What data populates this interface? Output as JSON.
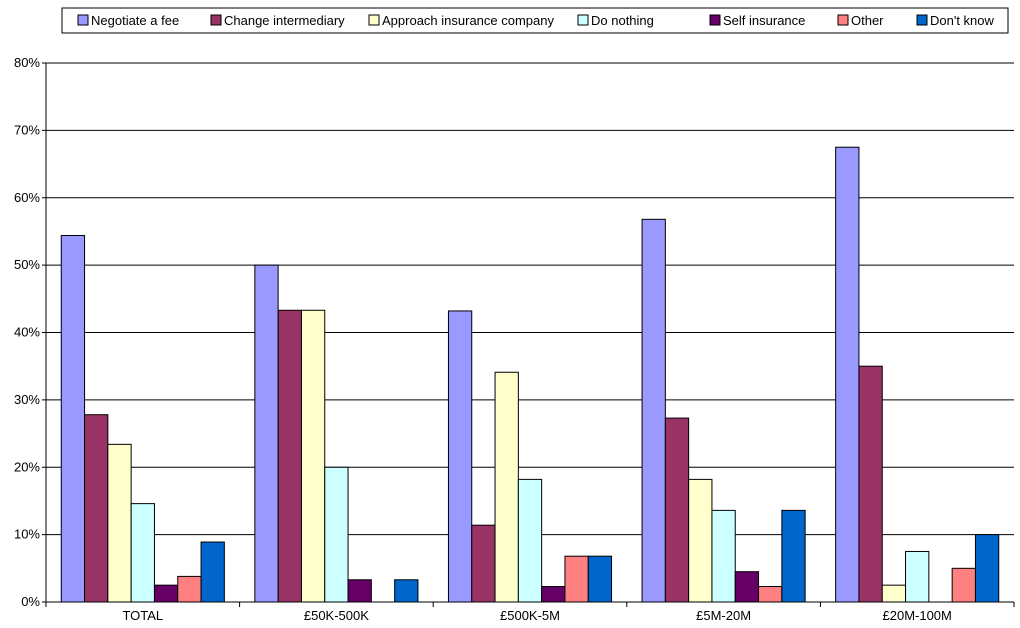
{
  "chart_data": {
    "type": "bar",
    "categories": [
      "TOTAL",
      "£50K-500K",
      "£500K-5M",
      "£5M-20M",
      "£20M-100M"
    ],
    "series": [
      {
        "name": "Negotiate a fee",
        "color": "#9999ff",
        "values": [
          54.4,
          50.0,
          43.2,
          56.8,
          67.5
        ]
      },
      {
        "name": "Change intermediary",
        "color": "#993366",
        "values": [
          27.8,
          43.3,
          11.4,
          27.3,
          35.0
        ]
      },
      {
        "name": "Approach insurance company",
        "color": "#ffffcc",
        "values": [
          23.4,
          43.3,
          34.1,
          18.2,
          2.5
        ]
      },
      {
        "name": "Do nothing",
        "color": "#ccffff",
        "values": [
          14.6,
          20.0,
          18.2,
          13.6,
          7.5
        ]
      },
      {
        "name": "Self insurance",
        "color": "#660066",
        "values": [
          2.5,
          3.3,
          2.3,
          4.5,
          0
        ]
      },
      {
        "name": "Other",
        "color": "#ff8080",
        "values": [
          3.8,
          0,
          6.8,
          2.3,
          5.0
        ]
      },
      {
        "name": "Don't know",
        "color": "#0066cc",
        "values": [
          8.9,
          3.3,
          6.8,
          13.6,
          10.0
        ]
      }
    ],
    "y_ticks": [
      "0%",
      "10%",
      "20%",
      "30%",
      "40%",
      "50%",
      "60%",
      "70%",
      "80%"
    ],
    "ylim": [
      0,
      80
    ],
    "title": "",
    "xlabel": "",
    "ylabel": "",
    "grid": true,
    "legend_position": "top"
  }
}
